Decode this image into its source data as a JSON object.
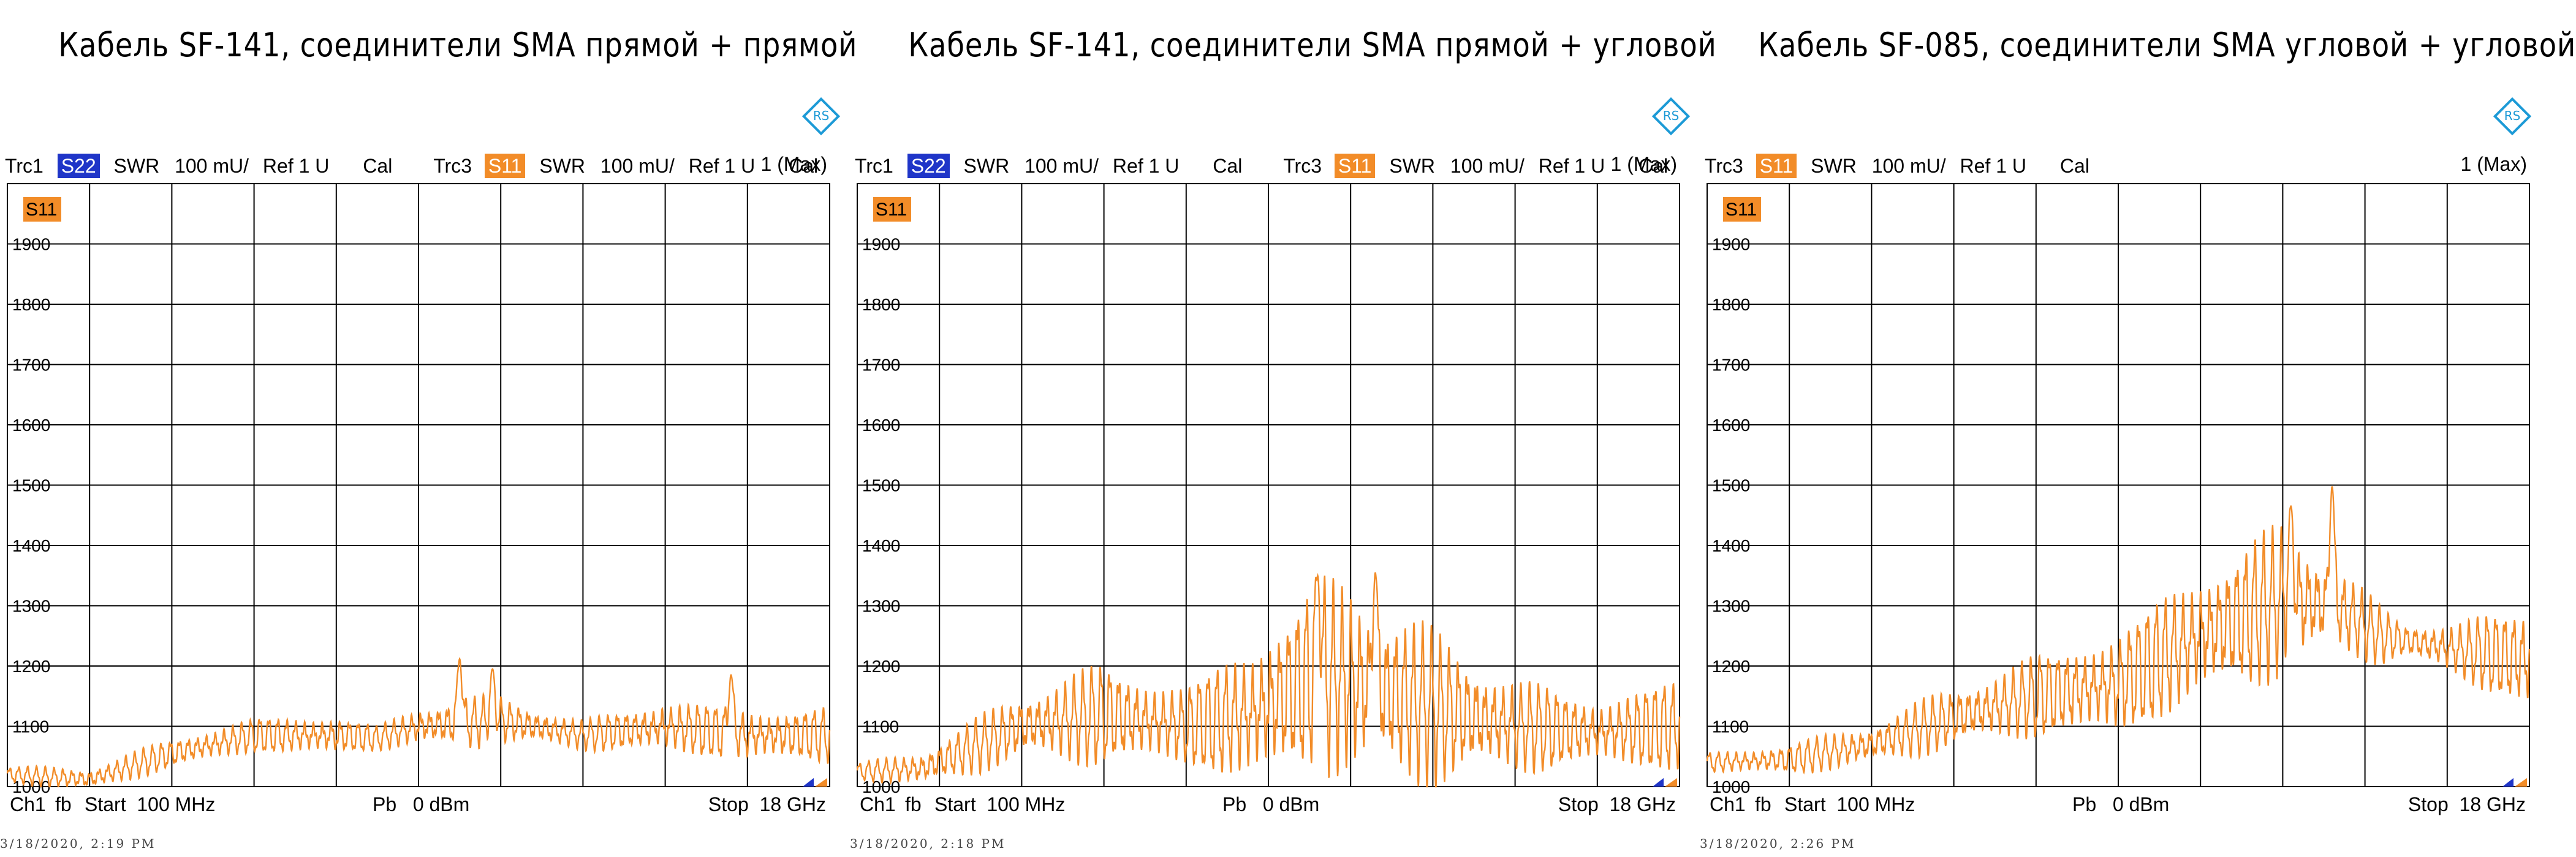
{
  "colors": {
    "s11": "#F28C28",
    "s22": "#1F35C8",
    "grid": "#000000",
    "logo": "#1C9AD6"
  },
  "icons": {
    "logo": "rohde-schwarz-logo-icon"
  },
  "chart_data": [
    {
      "type": "line",
      "title": "Кабель SF-141, соединители SMA прямой + прямой",
      "header": {
        "trc1": "Trc1",
        "trc1_badge": "S22",
        "trc1_fmt": "SWR",
        "trc1_scale": "100 mU/",
        "trc1_ref": "Ref 1 U",
        "trc1_cal": "Cal",
        "trc3": "Trc3",
        "trc3_badge": "S11",
        "trc3_fmt": "SWR",
        "trc3_scale": "100 mU/",
        "trc3_ref": "Ref 1 U",
        "trc3_cal": "Cal",
        "max": "1 (Max)"
      },
      "trace_label": "S11",
      "ylim": [
        1000,
        2000
      ],
      "yticks": [
        "1900",
        "1800",
        "1700",
        "1600",
        "1500",
        "1400",
        "1300",
        "1200",
        "1100",
        "1000"
      ],
      "xlim": [
        100,
        18000
      ],
      "x_unit": "MHz",
      "profile": [
        [
          0,
          1020
        ],
        [
          0.1,
          1012
        ],
        [
          0.2,
          1055
        ],
        [
          0.3,
          1085
        ],
        [
          0.4,
          1085
        ],
        [
          0.45,
          1080
        ],
        [
          0.5,
          1100
        ],
        [
          0.6,
          1110
        ],
        [
          0.7,
          1085
        ],
        [
          0.8,
          1100
        ],
        [
          0.9,
          1085
        ],
        [
          1.0,
          1085
        ]
      ],
      "ripple": [
        [
          0,
          12
        ],
        [
          0.2,
          22
        ],
        [
          0.3,
          26
        ],
        [
          0.4,
          30
        ],
        [
          0.45,
          18
        ],
        [
          0.55,
          40
        ],
        [
          0.7,
          22
        ],
        [
          0.8,
          40
        ],
        [
          1.0,
          40
        ]
      ],
      "peaks": [
        [
          0.55,
          1212
        ],
        [
          0.59,
          1195
        ],
        [
          0.88,
          1185
        ]
      ],
      "cycles": 92,
      "footer": {
        "ch": "Ch1",
        "fb": "fb",
        "start": "Start  100 MHz",
        "pb": "Pb   0 dBm",
        "stop": "Stop  18 GHz"
      },
      "timestamp": "3/18/2020, 2:19 PM"
    },
    {
      "type": "line",
      "title": "Кабель SF-141, соединители SMA прямой + угловой",
      "header": {
        "trc1": "Trc1",
        "trc1_badge": "S22",
        "trc1_fmt": "SWR",
        "trc1_scale": "100 mU/",
        "trc1_ref": "Ref 1 U",
        "trc1_cal": "Cal",
        "trc3": "Trc3",
        "trc3_badge": "S11",
        "trc3_fmt": "SWR",
        "trc3_scale": "100 mU/",
        "trc3_ref": "Ref 1 U",
        "trc3_cal": "Cal",
        "max": "1 (Max)"
      },
      "trace_label": "S11",
      "ylim": [
        1000,
        2000
      ],
      "yticks": [
        "1900",
        "1800",
        "1700",
        "1600",
        "1500",
        "1400",
        "1300",
        "1200",
        "1100",
        "1000"
      ],
      "xlim": [
        100,
        18000
      ],
      "x_unit": "MHz",
      "profile": [
        [
          0,
          1025
        ],
        [
          0.08,
          1030
        ],
        [
          0.2,
          1100
        ],
        [
          0.3,
          1120
        ],
        [
          0.4,
          1100
        ],
        [
          0.48,
          1120
        ],
        [
          0.56,
          1185
        ],
        [
          0.6,
          1175
        ],
        [
          0.7,
          1130
        ],
        [
          0.8,
          1100
        ],
        [
          0.9,
          1090
        ],
        [
          1.0,
          1100
        ]
      ],
      "ripple": [
        [
          0,
          12
        ],
        [
          0.15,
          40
        ],
        [
          0.3,
          75
        ],
        [
          0.4,
          60
        ],
        [
          0.5,
          120
        ],
        [
          0.6,
          150
        ],
        [
          0.7,
          110
        ],
        [
          0.8,
          70
        ],
        [
          0.9,
          50
        ],
        [
          1.0,
          70
        ]
      ],
      "peaks": [
        [
          0.56,
          1350
        ],
        [
          0.63,
          1355
        ]
      ],
      "cycles": 92,
      "footer": {
        "ch": "Ch1",
        "fb": "fb",
        "start": "Start  100 MHz",
        "pb": "Pb   0 dBm",
        "stop": "Stop  18 GHz"
      },
      "timestamp": "3/18/2020, 2:18 PM"
    },
    {
      "type": "line",
      "title": "Кабель SF-085, соединители SMA угловой + угловой",
      "header": {
        "trc1": "",
        "trc1_badge": "",
        "trc1_fmt": "",
        "trc1_scale": "",
        "trc1_ref": "",
        "trc1_cal": "",
        "trc3": "Trc3",
        "trc3_badge": "S11",
        "trc3_fmt": "SWR",
        "trc3_scale": "100 mU/",
        "trc3_ref": "Ref 1 U",
        "trc3_cal": "Cal",
        "max": "1 (Max)"
      },
      "trace_label": "S11",
      "ylim": [
        1000,
        2000
      ],
      "yticks": [
        "1900",
        "1800",
        "1700",
        "1600",
        "1500",
        "1400",
        "1300",
        "1200",
        "1100",
        "1000"
      ],
      "xlim": [
        100,
        18000
      ],
      "x_unit": "MHz",
      "profile": [
        [
          0,
          1040
        ],
        [
          0.1,
          1045
        ],
        [
          0.2,
          1070
        ],
        [
          0.3,
          1115
        ],
        [
          0.4,
          1150
        ],
        [
          0.5,
          1170
        ],
        [
          0.6,
          1250
        ],
        [
          0.7,
          1310
        ],
        [
          0.76,
          1300
        ],
        [
          0.82,
          1250
        ],
        [
          0.9,
          1230
        ],
        [
          1.0,
          1210
        ]
      ],
      "ripple": [
        [
          0,
          15
        ],
        [
          0.2,
          30
        ],
        [
          0.3,
          45
        ],
        [
          0.4,
          60
        ],
        [
          0.5,
          80
        ],
        [
          0.6,
          100
        ],
        [
          0.7,
          110
        ],
        [
          0.78,
          60
        ],
        [
          0.85,
          25
        ],
        [
          0.92,
          45
        ],
        [
          1.0,
          80
        ]
      ],
      "peaks": [
        [
          0.76,
          1498
        ],
        [
          0.71,
          1465
        ]
      ],
      "cycles": 92,
      "footer": {
        "ch": "Ch1",
        "fb": "fb",
        "start": "Start  100 MHz",
        "pb": "Pb   0 dBm",
        "stop": "Stop  18 GHz"
      },
      "timestamp": "3/18/2020, 2:26 PM"
    }
  ]
}
